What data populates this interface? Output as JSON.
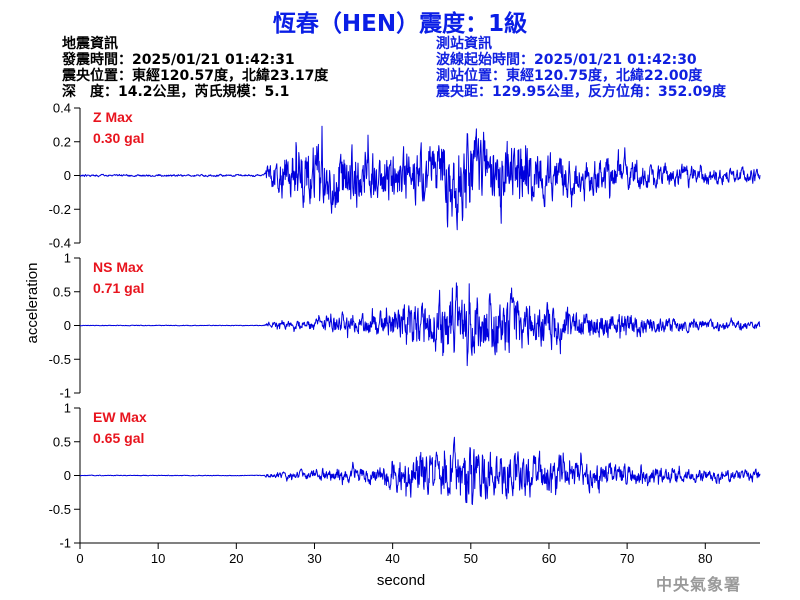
{
  "header": {
    "title": "恆春（HEN）震度：1級"
  },
  "quake_info": {
    "heading": "地震資訊",
    "origin_time": "發震時間：2025/01/21 01:42:31",
    "epicenter": "震央位置：東經120.57度，北緯23.17度",
    "depth_magnitude": "深　度：14.2公里，芮氏規模：5.1"
  },
  "station_info": {
    "heading": "測站資訊",
    "wave_start": "波線起始時間：2025/01/21 01:42:30",
    "location": "測站位置：東經120.75度，北緯22.00度",
    "distance": "震央距：129.95公里，反方位角：352.09度"
  },
  "footer": {
    "agency": "中央氣象署"
  },
  "colors": {
    "trace": "#0000dd",
    "max_label": "#e8141e",
    "title": "#0a1ee6"
  },
  "chart_data": {
    "type": "line",
    "xlabel": "second",
    "ylabel": "acceleration",
    "xlim": [
      0,
      87
    ],
    "xticks": [
      0,
      10,
      20,
      30,
      40,
      50,
      60,
      70,
      80
    ],
    "grid": false,
    "panels": [
      {
        "name": "Z",
        "max_label": "Z Max",
        "max_value": "0.30 gal",
        "ylim": [
          -0.4,
          0.4
        ],
        "yticks": [
          -0.4,
          -0.2,
          0,
          0.2,
          0.4
        ],
        "ytick_labels": [
          "-0.4",
          "-0.2",
          "0",
          "0.2",
          "0.4"
        ],
        "onset": 24,
        "envelope": [
          [
            0,
            0.005
          ],
          [
            23.5,
            0.005
          ],
          [
            24,
            0.05
          ],
          [
            28,
            0.15
          ],
          [
            32,
            0.16
          ],
          [
            38,
            0.12
          ],
          [
            44,
            0.13
          ],
          [
            48,
            0.2
          ],
          [
            52,
            0.18
          ],
          [
            58,
            0.13
          ],
          [
            64,
            0.09
          ],
          [
            72,
            0.06
          ],
          [
            80,
            0.04
          ],
          [
            87,
            0.035
          ]
        ]
      },
      {
        "name": "NS",
        "max_label": "NS Max",
        "max_value": "0.71 gal",
        "ylim": [
          -1,
          1
        ],
        "yticks": [
          -1,
          -0.5,
          0,
          0.5,
          1
        ],
        "ytick_labels": [
          "-1",
          "-0.5",
          "0",
          "0.5",
          "1"
        ],
        "onset": 24,
        "envelope": [
          [
            0,
            0.004
          ],
          [
            23.5,
            0.004
          ],
          [
            24,
            0.03
          ],
          [
            30,
            0.07
          ],
          [
            38,
            0.14
          ],
          [
            44,
            0.3
          ],
          [
            48,
            0.45
          ],
          [
            52,
            0.36
          ],
          [
            58,
            0.28
          ],
          [
            62,
            0.2
          ],
          [
            68,
            0.14
          ],
          [
            74,
            0.09
          ],
          [
            80,
            0.06
          ],
          [
            87,
            0.05
          ]
        ]
      },
      {
        "name": "EW",
        "max_label": "EW Max",
        "max_value": "0.65 gal",
        "ylim": [
          -1,
          1
        ],
        "yticks": [
          -1,
          -0.5,
          0,
          0.5,
          1
        ],
        "ytick_labels": [
          "-1",
          "-0.5",
          "0",
          "0.5",
          "1"
        ],
        "onset": 24,
        "envelope": [
          [
            0,
            0.004
          ],
          [
            23.5,
            0.004
          ],
          [
            24,
            0.03
          ],
          [
            30,
            0.06
          ],
          [
            38,
            0.1
          ],
          [
            44,
            0.28
          ],
          [
            48,
            0.35
          ],
          [
            52,
            0.3
          ],
          [
            56,
            0.28
          ],
          [
            60,
            0.22
          ],
          [
            66,
            0.16
          ],
          [
            72,
            0.1
          ],
          [
            80,
            0.07
          ],
          [
            87,
            0.06
          ]
        ]
      }
    ]
  }
}
